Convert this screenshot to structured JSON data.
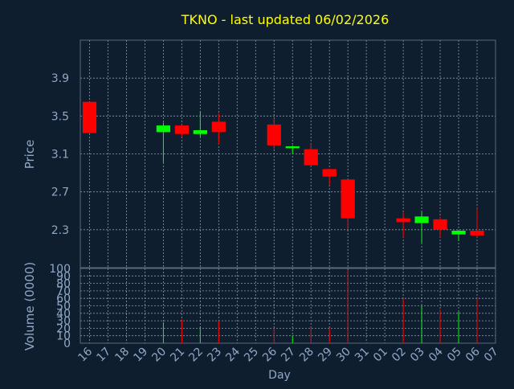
{
  "title": "TKNO - last updated 06/02/2026",
  "colors": {
    "background": "#0f1e2e",
    "title": "#ffff00",
    "axis_text": "#8fa8c8",
    "grid": "#8a9bb0",
    "up": "#00ff00",
    "down": "#ff0000"
  },
  "chart_data": [
    {
      "type": "candlestick",
      "ylabel": "Price",
      "ylim": [
        1.9,
        4.3
      ],
      "yticks": [
        2.3,
        2.7,
        3.1,
        3.5,
        3.9
      ],
      "yticklabels": [
        "2.3",
        "2.7",
        "3.1",
        "3.5",
        "3.9"
      ],
      "x_categories": [
        "16",
        "17",
        "18",
        "19",
        "20",
        "21",
        "22",
        "23",
        "24",
        "25",
        "26",
        "27",
        "28",
        "29",
        "30",
        "31",
        "01",
        "02",
        "03",
        "04",
        "05",
        "06",
        "07"
      ],
      "candles": [
        {
          "day": "16",
          "open": 3.65,
          "close": 3.32,
          "high": 3.65,
          "low": 3.32
        },
        {
          "day": "20",
          "open": 3.33,
          "close": 3.4,
          "high": 3.43,
          "low": 3.01
        },
        {
          "day": "21",
          "open": 3.4,
          "close": 3.31,
          "high": 3.41,
          "low": 3.28
        },
        {
          "day": "22",
          "open": 3.31,
          "close": 3.35,
          "high": 3.55,
          "low": 3.28
        },
        {
          "day": "23",
          "open": 3.44,
          "close": 3.33,
          "high": 3.53,
          "low": 3.2
        },
        {
          "day": "26",
          "open": 3.41,
          "close": 3.19,
          "high": 3.47,
          "low": 3.15
        },
        {
          "day": "27",
          "open": 3.16,
          "close": 3.18,
          "high": 3.19,
          "low": 3.1
        },
        {
          "day": "28",
          "open": 3.15,
          "close": 2.98,
          "high": 3.21,
          "low": 2.97
        },
        {
          "day": "29",
          "open": 2.94,
          "close": 2.86,
          "high": 2.94,
          "low": 2.77
        },
        {
          "day": "30",
          "open": 2.83,
          "close": 2.42,
          "high": 2.83,
          "low": 2.3
        },
        {
          "day": "02",
          "open": 2.42,
          "close": 2.38,
          "high": 2.48,
          "low": 2.22
        },
        {
          "day": "03",
          "open": 2.37,
          "close": 2.44,
          "high": 2.49,
          "low": 2.16
        },
        {
          "day": "04",
          "open": 2.41,
          "close": 2.3,
          "high": 2.44,
          "low": 2.22
        },
        {
          "day": "05",
          "open": 2.25,
          "close": 2.29,
          "high": 2.3,
          "low": 2.18
        },
        {
          "day": "06",
          "open": 2.29,
          "close": 2.24,
          "high": 2.53,
          "low": 2.22
        }
      ]
    },
    {
      "type": "bar",
      "ylabel": "Volume (0000)",
      "xlabel": "Day",
      "ylim": [
        0,
        100
      ],
      "yticks": [
        0,
        10,
        20,
        30,
        40,
        50,
        60,
        70,
        80,
        90,
        100
      ],
      "yticklabels": [
        "0",
        "10",
        "20",
        "30",
        "40",
        "50",
        "60",
        "70",
        "80",
        "90",
        "100"
      ],
      "x_categories": [
        "16",
        "17",
        "18",
        "19",
        "20",
        "21",
        "22",
        "23",
        "24",
        "25",
        "26",
        "27",
        "28",
        "29",
        "30",
        "31",
        "01",
        "02",
        "03",
        "04",
        "05",
        "06",
        "07"
      ],
      "bars": [
        {
          "day": "16",
          "value": 0,
          "dir": "down"
        },
        {
          "day": "20",
          "value": 28,
          "dir": "up"
        },
        {
          "day": "21",
          "value": 32,
          "dir": "down"
        },
        {
          "day": "22",
          "value": 22,
          "dir": "up"
        },
        {
          "day": "23",
          "value": 30,
          "dir": "down"
        },
        {
          "day": "26",
          "value": 20,
          "dir": "down"
        },
        {
          "day": "27",
          "value": 10,
          "dir": "up"
        },
        {
          "day": "28",
          "value": 22,
          "dir": "down"
        },
        {
          "day": "29",
          "value": 20,
          "dir": "down"
        },
        {
          "day": "30",
          "value": 98,
          "dir": "down"
        },
        {
          "day": "02",
          "value": 60,
          "dir": "down"
        },
        {
          "day": "03",
          "value": 50,
          "dir": "up"
        },
        {
          "day": "04",
          "value": 45,
          "dir": "down"
        },
        {
          "day": "05",
          "value": 42,
          "dir": "up"
        },
        {
          "day": "06",
          "value": 60,
          "dir": "down"
        }
      ]
    }
  ]
}
